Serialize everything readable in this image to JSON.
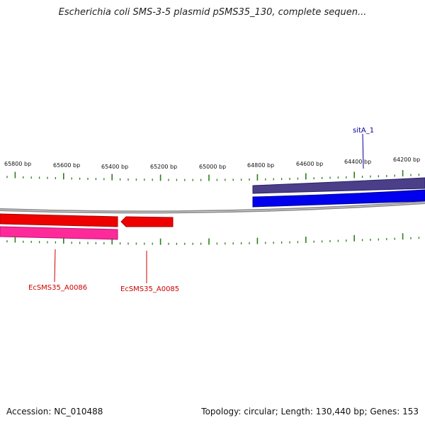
{
  "title": "Escherichia coli SMS-3-5 plasmid pSMS35_130, complete sequen...",
  "footer": {
    "accession": "Accession: NC_010488",
    "summary": "Topology: circular; Length: 130,440 bp; Genes: 153"
  },
  "scale_labels": [
    "65800 bp",
    "65600 bp",
    "65400 bp",
    "65200 bp",
    "65000 bp",
    "64800 bp",
    "64600 bp",
    "64400 bp",
    "64200 bp"
  ],
  "genes": [
    {
      "name": "sitA_1",
      "strand": "reverse",
      "color": "#0000cc",
      "label_color": "#000099"
    },
    {
      "name": "EcSMS35_A0086",
      "strand": "forward",
      "color": "#ff0000",
      "label_color": "#cc0000"
    },
    {
      "name": "EcSMS35_A0085",
      "strand": "forward",
      "color": "#ff0000",
      "label_color": "#cc0000"
    }
  ],
  "colors": {
    "backbone": "#888888",
    "tick": "#2e7d1e",
    "cds_reverse": "#0000ee",
    "cds_reverse_outline": "#4b3f8a",
    "cds_forward": "#ee0000",
    "cds_forward_outline": "#ff2a9a"
  }
}
